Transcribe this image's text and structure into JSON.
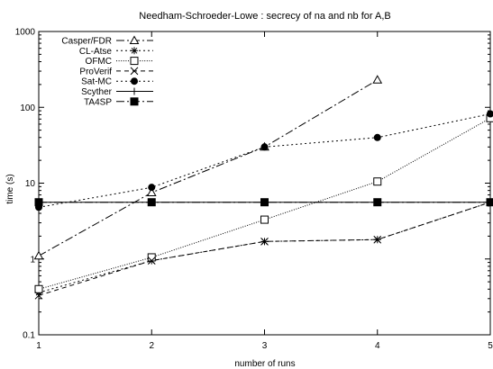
{
  "chart_data": {
    "type": "line",
    "title": "Needham-Schroeder-Lowe : secrecy of na and nb for A,B",
    "xlabel": "number of runs",
    "ylabel": "time (s)",
    "xlim": [
      1,
      5
    ],
    "ylim": [
      0.1,
      1000
    ],
    "yscale": "log",
    "grid": false,
    "legend_position": "top-left",
    "x_ticks": [
      1,
      2,
      3,
      4,
      5
    ],
    "x_tick_labels": [
      "1",
      "2",
      "3",
      "4",
      "5"
    ],
    "y_ticks": [
      0.1,
      1,
      10,
      100,
      1000
    ],
    "y_tick_labels": [
      "0.1",
      "1",
      "10",
      "100",
      "1000"
    ],
    "series": [
      {
        "name": "Casper/FDR",
        "marker": "triangle-open",
        "dash": "dash-dot",
        "x": [
          1,
          2,
          3,
          4
        ],
        "y": [
          1.1,
          7.5,
          30,
          230
        ]
      },
      {
        "name": "CL-Atse",
        "marker": "star",
        "dash": "dotted",
        "x": [
          1,
          2,
          3,
          4,
          5
        ],
        "y": [
          0.36,
          0.95,
          1.7,
          1.8,
          5.6
        ]
      },
      {
        "name": "OFMC",
        "marker": "square-open",
        "dash": "fine-dotted",
        "x": [
          1,
          2,
          3,
          4,
          5
        ],
        "y": [
          0.4,
          1.05,
          3.3,
          10.5,
          72
        ]
      },
      {
        "name": "ProVerif",
        "marker": "x",
        "dash": "dashed",
        "x": [
          1,
          2,
          3,
          4,
          5
        ],
        "y": [
          0.33,
          0.95,
          1.7,
          1.8,
          5.6
        ]
      },
      {
        "name": "Sat-MC",
        "marker": "circle-filled",
        "dash": "dotted",
        "x": [
          1,
          2,
          3,
          4,
          5
        ],
        "y": [
          4.8,
          8.8,
          30,
          40,
          82
        ]
      },
      {
        "name": "Scyther",
        "marker": "plus",
        "dash": "solid",
        "x": [
          1,
          2,
          3,
          4,
          5
        ],
        "y": [
          5.6,
          5.6,
          5.6,
          5.6,
          5.6
        ]
      },
      {
        "name": "TA4SP",
        "marker": "square-filled",
        "dash": "dash-dot",
        "x": [
          1,
          2,
          3,
          4,
          5
        ],
        "y": [
          5.6,
          5.6,
          5.6,
          5.6,
          5.6
        ]
      }
    ]
  }
}
